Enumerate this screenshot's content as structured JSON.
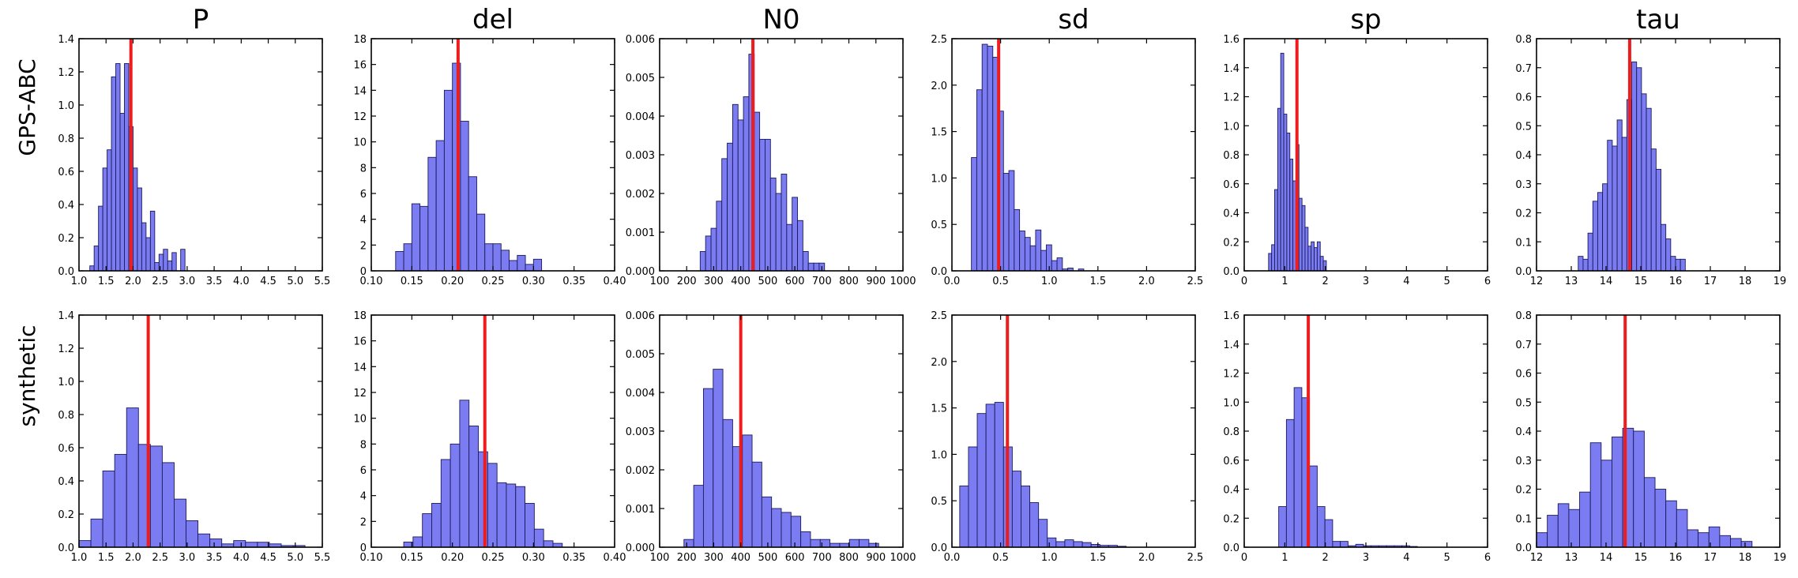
{
  "row_labels": [
    "GPS-ABC",
    "synthetic"
  ],
  "colors": {
    "bar_fill": "#7b7bf2",
    "bar_edge": "#1b1b5a",
    "ref_line": "#ee1c1c",
    "frame": "#000000"
  },
  "chart_data": [
    {
      "type": "bar",
      "name": "P",
      "row": "GPS-ABC",
      "title": "P",
      "xlim": [
        1.0,
        5.5
      ],
      "ylim": [
        0,
        1.4
      ],
      "xticks": [
        "1.0",
        "1.5",
        "2.0",
        "2.5",
        "3.0",
        "3.5",
        "4.0",
        "4.5",
        "5.0",
        "5.5"
      ],
      "yticks": [
        "0.0",
        "0.2",
        "0.4",
        "0.6",
        "0.8",
        "1.0",
        "1.2",
        "1.4"
      ],
      "bin_start": 1.2,
      "bin_width": 0.08,
      "values": [
        0.03,
        0.15,
        0.39,
        0.62,
        0.73,
        1.17,
        1.25,
        0.95,
        1.25,
        0.87,
        0.62,
        0.5,
        0.29,
        0.2,
        0.36,
        0.05,
        0.1,
        0.13,
        0.06,
        0.11,
        0.0,
        0.13
      ],
      "reference": 1.96
    },
    {
      "type": "bar",
      "name": "del",
      "row": "GPS-ABC",
      "title": "del",
      "xlim": [
        0.1,
        0.4
      ],
      "ylim": [
        0,
        18
      ],
      "xticks": [
        "0.10",
        "0.15",
        "0.20",
        "0.25",
        "0.30",
        "0.35",
        "0.40"
      ],
      "yticks": [
        "0",
        "2",
        "4",
        "6",
        "8",
        "10",
        "12",
        "14",
        "16",
        "18"
      ],
      "bin_start": 0.13,
      "bin_width": 0.01,
      "values": [
        1.5,
        2.1,
        5.2,
        5.0,
        8.8,
        10.1,
        14.0,
        16.1,
        11.6,
        7.3,
        4.4,
        2.1,
        2.1,
        1.6,
        0.8,
        1.2,
        0.5,
        0.9
      ],
      "reference": 0.207
    },
    {
      "type": "bar",
      "name": "N0",
      "row": "GPS-ABC",
      "title": "N0",
      "xlim": [
        100,
        1000
      ],
      "ylim": [
        0,
        0.006
      ],
      "xticks": [
        "100",
        "200",
        "300",
        "400",
        "500",
        "600",
        "700",
        "800",
        "900",
        "1000"
      ],
      "yticks": [
        "0.000",
        "0.001",
        "0.002",
        "0.003",
        "0.004",
        "0.005",
        "0.006"
      ],
      "bin_start": 250,
      "bin_width": 20,
      "values": [
        0.0005,
        0.0009,
        0.0011,
        0.0018,
        0.0029,
        0.0033,
        0.0043,
        0.0039,
        0.0045,
        0.0056,
        0.0041,
        0.0034,
        0.0034,
        0.0024,
        0.002,
        0.0025,
        0.0012,
        0.0019,
        0.0013,
        0.0005,
        0.0002,
        0.0002,
        0.0002
      ],
      "reference": 445
    },
    {
      "type": "bar",
      "name": "sd",
      "row": "GPS-ABC",
      "title": "sd",
      "xlim": [
        0.0,
        2.5
      ],
      "ylim": [
        0,
        2.5
      ],
      "xticks": [
        "0.0",
        "0.5",
        "1.0",
        "1.5",
        "2.0",
        "2.5"
      ],
      "yticks": [
        "0.0",
        "0.5",
        "1.0",
        "1.5",
        "2.0",
        "2.5"
      ],
      "bin_start": 0.2,
      "bin_width": 0.055,
      "values": [
        1.22,
        1.95,
        2.44,
        2.42,
        2.3,
        1.72,
        1.05,
        1.08,
        0.66,
        0.43,
        0.36,
        0.27,
        0.44,
        0.22,
        0.28,
        0.11,
        0.14,
        0.02,
        0.03,
        0.0,
        0.02
      ],
      "reference": 0.48
    },
    {
      "type": "bar",
      "name": "sp",
      "row": "GPS-ABC",
      "title": "sp",
      "xlim": [
        0,
        6
      ],
      "ylim": [
        0,
        1.6
      ],
      "xticks": [
        "0",
        "1",
        "2",
        "3",
        "4",
        "5",
        "6"
      ],
      "yticks": [
        "0.0",
        "0.2",
        "0.4",
        "0.6",
        "0.8",
        "1.0",
        "1.2",
        "1.4",
        "1.6"
      ],
      "bin_start": 0.6,
      "bin_width": 0.075,
      "values": [
        0.12,
        0.18,
        0.56,
        1.12,
        1.5,
        1.08,
        0.95,
        0.77,
        0.62,
        0.87,
        0.5,
        0.45,
        0.3,
        0.17,
        0.2,
        0.16,
        0.2,
        0.1,
        0.07
      ],
      "reference": 1.3
    },
    {
      "type": "bar",
      "name": "tau",
      "row": "GPS-ABC",
      "title": "tau",
      "xlim": [
        12,
        19
      ],
      "ylim": [
        0,
        0.8
      ],
      "xticks": [
        "12",
        "13",
        "14",
        "15",
        "16",
        "17",
        "18",
        "19"
      ],
      "yticks": [
        "0.0",
        "0.1",
        "0.2",
        "0.3",
        "0.4",
        "0.5",
        "0.6",
        "0.7",
        "0.8"
      ],
      "bin_start": 13.2,
      "bin_width": 0.14,
      "values": [
        0.05,
        0.04,
        0.13,
        0.24,
        0.27,
        0.3,
        0.45,
        0.43,
        0.52,
        0.46,
        0.59,
        0.72,
        0.7,
        0.61,
        0.56,
        0.42,
        0.35,
        0.16,
        0.11,
        0.05,
        0.04,
        0.04
      ],
      "reference": 14.68
    },
    {
      "type": "bar",
      "name": "P",
      "row": "synthetic",
      "title": "",
      "xlim": [
        1.0,
        5.5
      ],
      "ylim": [
        0,
        1.4
      ],
      "xticks": [
        "1.0",
        "1.5",
        "2.0",
        "2.5",
        "3.0",
        "3.5",
        "4.0",
        "4.5",
        "5.0",
        "5.5"
      ],
      "yticks": [
        "0.0",
        "0.2",
        "0.4",
        "0.6",
        "0.8",
        "1.0",
        "1.2",
        "1.4"
      ],
      "bin_start": 1.0,
      "bin_width": 0.22,
      "values": [
        0.04,
        0.17,
        0.46,
        0.56,
        0.84,
        0.62,
        0.61,
        0.51,
        0.29,
        0.16,
        0.08,
        0.05,
        0.02,
        0.04,
        0.03,
        0.03,
        0.02,
        0.01,
        0.01
      ],
      "reference": 2.28
    },
    {
      "type": "bar",
      "name": "del",
      "row": "synthetic",
      "title": "",
      "xlim": [
        0.1,
        0.4
      ],
      "ylim": [
        0,
        18
      ],
      "xticks": [
        "0.10",
        "0.15",
        "0.20",
        "0.25",
        "0.30",
        "0.35",
        "0.40"
      ],
      "yticks": [
        "0",
        "2",
        "4",
        "6",
        "8",
        "10",
        "12",
        "14",
        "16",
        "18"
      ],
      "bin_start": 0.14,
      "bin_width": 0.0115,
      "values": [
        0.4,
        0.8,
        2.6,
        3.4,
        6.8,
        8.0,
        11.4,
        9.4,
        7.4,
        6.5,
        5.0,
        4.9,
        4.7,
        3.4,
        1.4,
        0.5,
        0.3
      ],
      "reference": 0.24
    },
    {
      "type": "bar",
      "name": "N0",
      "row": "synthetic",
      "title": "",
      "xlim": [
        100,
        1000
      ],
      "ylim": [
        0,
        0.006
      ],
      "xticks": [
        "100",
        "200",
        "300",
        "400",
        "500",
        "600",
        "700",
        "800",
        "900",
        "1000"
      ],
      "yticks": [
        "0.000",
        "0.001",
        "0.002",
        "0.003",
        "0.004",
        "0.005",
        "0.006"
      ],
      "bin_start": 190,
      "bin_width": 36,
      "values": [
        0.0002,
        0.0016,
        0.0041,
        0.0046,
        0.0033,
        0.0026,
        0.0029,
        0.0022,
        0.0013,
        0.001,
        0.0009,
        0.0008,
        0.0004,
        0.0002,
        0.0002,
        0.0001,
        0.0001,
        0.0002,
        0.0002,
        0.0001
      ],
      "reference": 400
    },
    {
      "type": "bar",
      "name": "sd",
      "row": "synthetic",
      "title": "",
      "xlim": [
        0.0,
        2.5
      ],
      "ylim": [
        0,
        2.5
      ],
      "xticks": [
        "0.0",
        "0.5",
        "1.0",
        "1.5",
        "2.0",
        "2.5"
      ],
      "yticks": [
        "0.0",
        "0.5",
        "1.0",
        "1.5",
        "2.0",
        "2.5"
      ],
      "bin_start": 0.08,
      "bin_width": 0.09,
      "values": [
        0.66,
        1.08,
        1.44,
        1.54,
        1.56,
        1.08,
        0.82,
        0.66,
        0.48,
        0.3,
        0.1,
        0.06,
        0.08,
        0.06,
        0.05,
        0.03,
        0.02,
        0.02,
        0.01
      ],
      "reference": 0.57
    },
    {
      "type": "bar",
      "name": "sp",
      "row": "synthetic",
      "title": "",
      "xlim": [
        0,
        6
      ],
      "ylim": [
        0,
        1.6
      ],
      "xticks": [
        "0",
        "1",
        "2",
        "3",
        "4",
        "5",
        "6"
      ],
      "yticks": [
        "0.0",
        "0.2",
        "0.4",
        "0.6",
        "0.8",
        "1.0",
        "1.2",
        "1.4",
        "1.6"
      ],
      "bin_start": 0.85,
      "bin_width": 0.19,
      "values": [
        0.28,
        0.88,
        1.1,
        1.03,
        0.56,
        0.28,
        0.19,
        0.04,
        0.04,
        0.01,
        0.02,
        0.01,
        0.01,
        0.01,
        0.01,
        0.01,
        0.01,
        0.005
      ],
      "reference": 1.58
    },
    {
      "type": "bar",
      "name": "tau",
      "row": "synthetic",
      "title": "",
      "xlim": [
        12,
        19
      ],
      "ylim": [
        0,
        0.8
      ],
      "xticks": [
        "12",
        "13",
        "14",
        "15",
        "16",
        "17",
        "18",
        "19"
      ],
      "yticks": [
        "0.0",
        "0.1",
        "0.2",
        "0.3",
        "0.4",
        "0.5",
        "0.6",
        "0.7",
        "0.8"
      ],
      "bin_start": 12.0,
      "bin_width": 0.31,
      "values": [
        0.05,
        0.11,
        0.15,
        0.13,
        0.19,
        0.36,
        0.3,
        0.38,
        0.41,
        0.4,
        0.24,
        0.2,
        0.16,
        0.13,
        0.06,
        0.05,
        0.07,
        0.04,
        0.03,
        0.02
      ],
      "reference": 14.55
    }
  ]
}
